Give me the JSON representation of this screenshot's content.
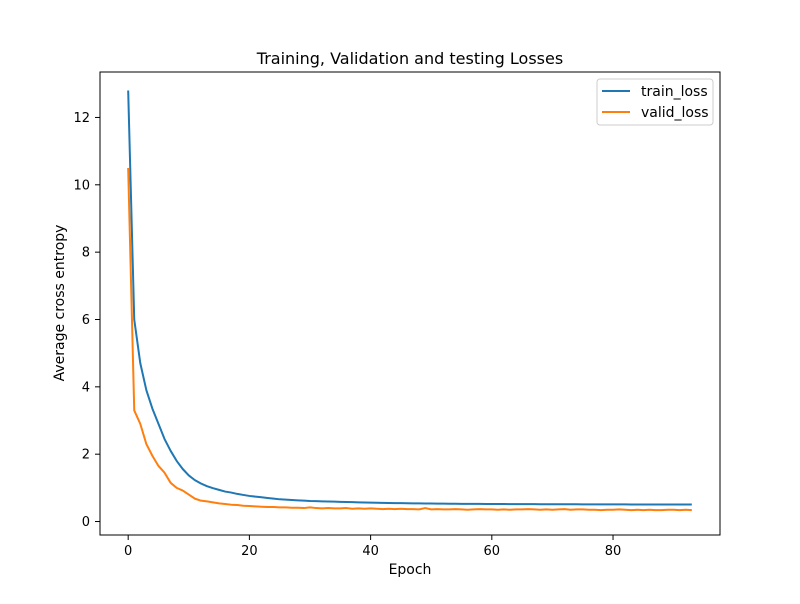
{
  "chart_data": {
    "type": "line",
    "title": "Training, Validation and testing Losses",
    "xlabel": "Epoch",
    "ylabel": "Average cross entropy",
    "xlim": [
      -4.65,
      97.65
    ],
    "ylim": [
      -0.4,
      13.35
    ],
    "xticks": [
      0,
      20,
      40,
      60,
      80
    ],
    "yticks": [
      0,
      2,
      4,
      6,
      8,
      10,
      12
    ],
    "legend_position": "top-right",
    "grid": false,
    "x": [
      0,
      1,
      2,
      3,
      4,
      5,
      6,
      7,
      8,
      9,
      10,
      11,
      12,
      13,
      14,
      15,
      16,
      17,
      18,
      19,
      20,
      21,
      22,
      23,
      24,
      25,
      26,
      27,
      28,
      29,
      30,
      31,
      32,
      33,
      34,
      35,
      36,
      37,
      38,
      39,
      40,
      41,
      42,
      43,
      44,
      45,
      46,
      47,
      48,
      49,
      50,
      51,
      52,
      53,
      54,
      55,
      56,
      57,
      58,
      59,
      60,
      61,
      62,
      63,
      64,
      65,
      66,
      67,
      68,
      69,
      70,
      71,
      72,
      73,
      74,
      75,
      76,
      77,
      78,
      79,
      80,
      81,
      82,
      83,
      84,
      85,
      86,
      87,
      88,
      89,
      90,
      91,
      92,
      93
    ],
    "series": [
      {
        "name": "train_loss",
        "color": "#1f77b4",
        "values": [
          12.8,
          6.0,
          4.7,
          3.9,
          3.35,
          2.9,
          2.45,
          2.1,
          1.8,
          1.56,
          1.37,
          1.23,
          1.13,
          1.05,
          0.99,
          0.94,
          0.89,
          0.86,
          0.82,
          0.79,
          0.76,
          0.74,
          0.72,
          0.7,
          0.68,
          0.66,
          0.65,
          0.64,
          0.63,
          0.62,
          0.61,
          0.605,
          0.6,
          0.595,
          0.59,
          0.585,
          0.58,
          0.575,
          0.57,
          0.565,
          0.56,
          0.556,
          0.553,
          0.55,
          0.547,
          0.545,
          0.542,
          0.54,
          0.538,
          0.536,
          0.534,
          0.532,
          0.53,
          0.528,
          0.527,
          0.526,
          0.525,
          0.524,
          0.523,
          0.522,
          0.521,
          0.52,
          0.519,
          0.518,
          0.518,
          0.517,
          0.516,
          0.516,
          0.515,
          0.514,
          0.514,
          0.513,
          0.513,
          0.512,
          0.512,
          0.511,
          0.511,
          0.51,
          0.51,
          0.509,
          0.509,
          0.508,
          0.508,
          0.507,
          0.507,
          0.506,
          0.506,
          0.506,
          0.505,
          0.505,
          0.505,
          0.504,
          0.504,
          0.504
        ]
      },
      {
        "name": "valid_loss",
        "color": "#ff7f0e",
        "values": [
          10.5,
          3.3,
          2.9,
          2.3,
          1.95,
          1.65,
          1.45,
          1.15,
          1.0,
          0.92,
          0.8,
          0.68,
          0.62,
          0.6,
          0.57,
          0.54,
          0.52,
          0.5,
          0.49,
          0.47,
          0.46,
          0.45,
          0.44,
          0.43,
          0.43,
          0.42,
          0.42,
          0.41,
          0.41,
          0.4,
          0.42,
          0.4,
          0.39,
          0.4,
          0.39,
          0.39,
          0.4,
          0.38,
          0.39,
          0.38,
          0.39,
          0.38,
          0.37,
          0.38,
          0.37,
          0.38,
          0.37,
          0.37,
          0.36,
          0.4,
          0.36,
          0.37,
          0.36,
          0.36,
          0.37,
          0.36,
          0.35,
          0.36,
          0.37,
          0.36,
          0.36,
          0.35,
          0.36,
          0.35,
          0.36,
          0.36,
          0.37,
          0.36,
          0.35,
          0.36,
          0.35,
          0.36,
          0.37,
          0.35,
          0.36,
          0.36,
          0.35,
          0.35,
          0.34,
          0.35,
          0.35,
          0.36,
          0.35,
          0.34,
          0.35,
          0.34,
          0.35,
          0.34,
          0.34,
          0.35,
          0.35,
          0.34,
          0.35,
          0.34
        ]
      }
    ]
  }
}
